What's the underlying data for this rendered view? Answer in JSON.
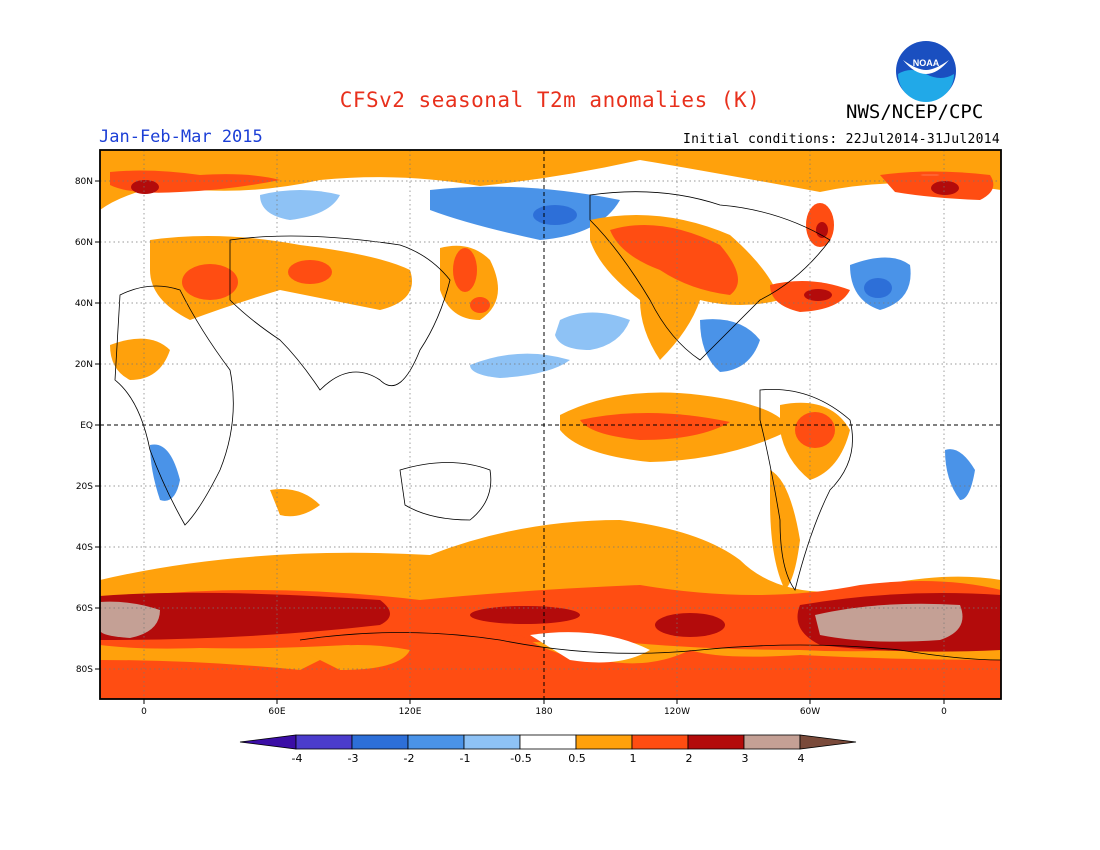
{
  "header": {
    "title": "CFSv2 seasonal T2m anomalies (K)",
    "period": "Jan-Feb-Mar 2015",
    "organization": "NWS/NCEP/CPC",
    "initial_conditions": "Initial conditions: 22Jul2014-31Jul2014",
    "logo_text": "NOAA"
  },
  "map": {
    "lat_labels": [
      "80N",
      "60N",
      "40N",
      "20N",
      "EQ",
      "20S",
      "40S",
      "60S",
      "80S"
    ],
    "lon_labels": [
      "0",
      "60E",
      "120E",
      "180",
      "120W",
      "60W",
      "0"
    ]
  },
  "colorbar": {
    "labels": [
      "-4",
      "-3",
      "-2",
      "-1",
      "-0.5",
      "0.5",
      "1",
      "2",
      "3",
      "4"
    ],
    "colors": [
      "#3b0ea6",
      "#4b3ccc",
      "#2d6fd8",
      "#4a93e8",
      "#8ec2f5",
      "#ffffff",
      "#ffa10c",
      "#ff4d12",
      "#b30b0b",
      "#c4a095",
      "#7a4a3a"
    ]
  }
}
